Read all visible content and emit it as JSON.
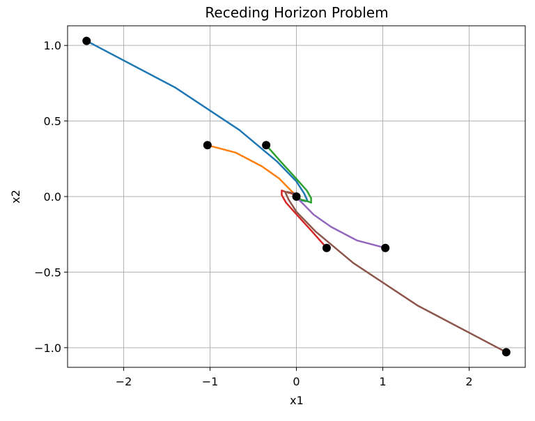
{
  "chart_data": {
    "type": "line",
    "title": "Receding Horizon Problem",
    "xlabel": "x1",
    "ylabel": "x2",
    "xlim": [
      -2.65,
      2.65
    ],
    "ylim": [
      -1.13,
      1.13
    ],
    "x_ticks": [
      -2,
      -1,
      0,
      1,
      2
    ],
    "y_ticks": [
      -1.0,
      -0.5,
      0.0,
      0.5,
      1.0
    ],
    "x_tick_labels": [
      "−2",
      "−1",
      "0",
      "1",
      "2"
    ],
    "y_tick_labels": [
      "−1.0",
      "−0.5",
      "0.0",
      "0.5",
      "1.0"
    ],
    "grid": true,
    "series": [
      {
        "color": "#1f77b4",
        "x": [
          -2.43,
          -1.4,
          -0.66,
          -0.22,
          0.0,
          0.09,
          0.13,
          0.1,
          0.02,
          0.0
        ],
        "y": [
          1.03,
          0.72,
          0.44,
          0.23,
          0.1,
          0.02,
          -0.03,
          -0.03,
          -0.02,
          0.0
        ]
      },
      {
        "color": "#ff7f0e",
        "x": [
          -1.03,
          -0.7,
          -0.4,
          -0.2,
          -0.08,
          -0.01,
          0.0
        ],
        "y": [
          0.34,
          0.29,
          0.2,
          0.12,
          0.05,
          0.01,
          0.0
        ]
      },
      {
        "color": "#2ca02c",
        "x": [
          -0.35,
          -0.18,
          -0.02,
          0.12,
          0.17,
          0.17,
          0.12,
          0.05,
          0.0
        ],
        "y": [
          0.34,
          0.23,
          0.13,
          0.04,
          -0.01,
          -0.04,
          -0.03,
          -0.02,
          0.0
        ]
      },
      {
        "color": "#d62728",
        "x": [
          0.35,
          0.18,
          0.02,
          -0.12,
          -0.17,
          -0.17,
          -0.12,
          -0.05,
          0.0
        ],
        "y": [
          -0.34,
          -0.23,
          -0.13,
          -0.04,
          0.01,
          0.04,
          0.03,
          0.02,
          0.0
        ]
      },
      {
        "color": "#9467bd",
        "x": [
          1.03,
          0.7,
          0.4,
          0.2,
          0.08,
          0.01,
          0.0
        ],
        "y": [
          -0.34,
          -0.29,
          -0.2,
          -0.12,
          -0.05,
          -0.01,
          0.0
        ]
      },
      {
        "color": "#8c564b",
        "x": [
          2.43,
          1.4,
          0.66,
          0.22,
          0.0,
          -0.09,
          -0.13,
          -0.1,
          -0.02,
          0.0
        ],
        "y": [
          -1.03,
          -0.72,
          -0.44,
          -0.23,
          -0.1,
          -0.02,
          0.03,
          0.03,
          0.02,
          0.0
        ]
      }
    ],
    "markers": {
      "color": "#000000",
      "x": [
        -2.43,
        -1.03,
        -0.35,
        0.0,
        0.35,
        1.03,
        2.43
      ],
      "y": [
        1.03,
        0.34,
        0.34,
        0.0,
        -0.34,
        -0.34,
        -1.03
      ]
    }
  }
}
